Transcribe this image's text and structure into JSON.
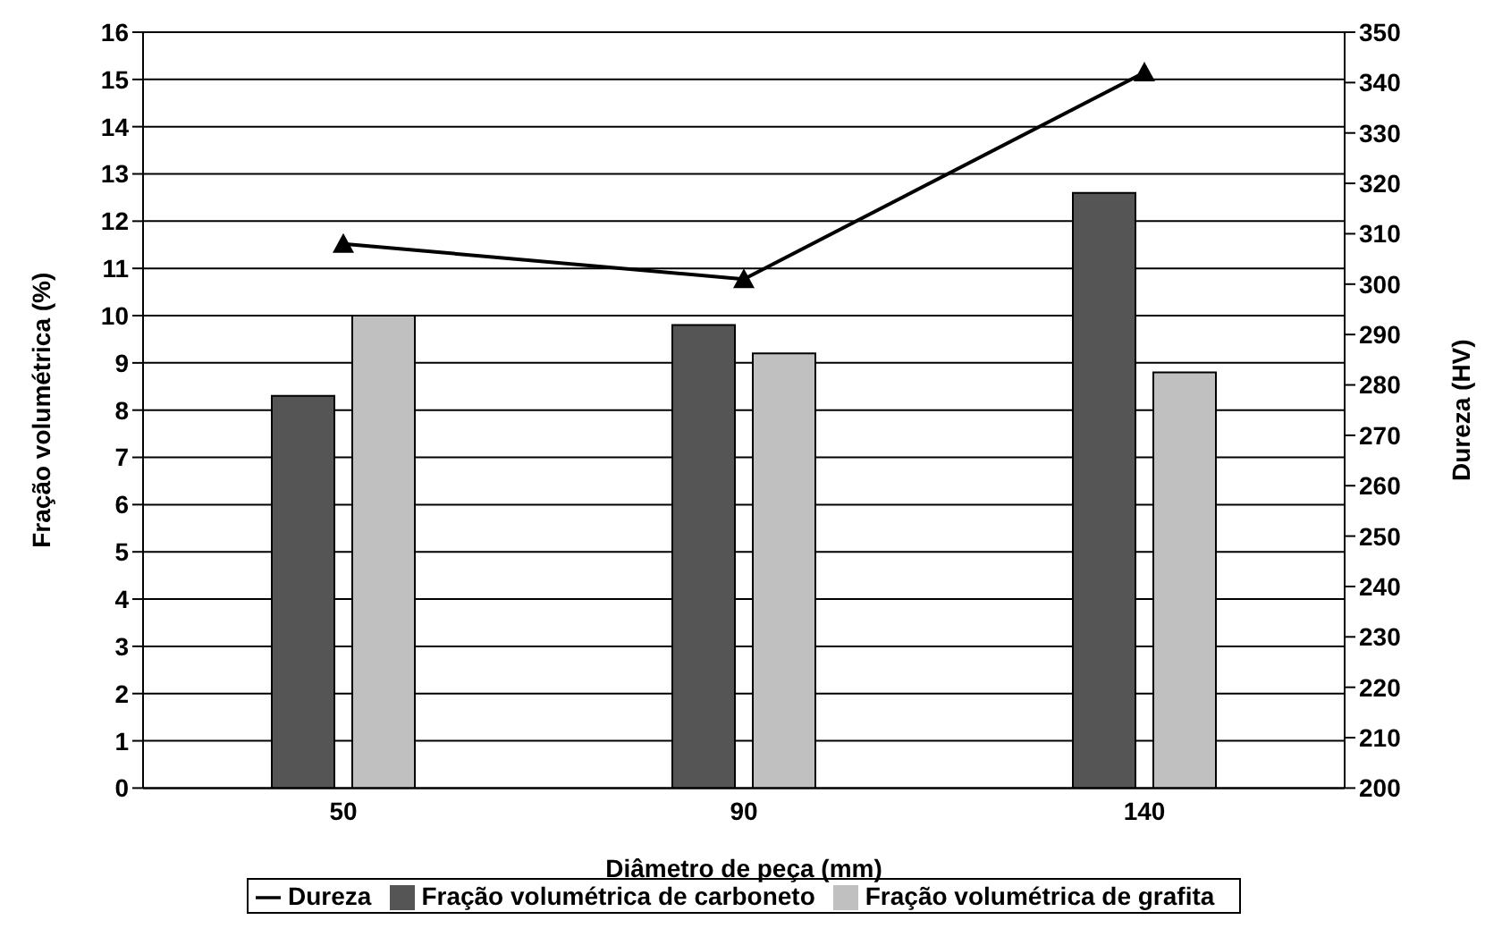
{
  "chart_data": {
    "type": "bar",
    "xlabel": "Diâmetro de peça (mm)",
    "ylabel": "Fração volumétrica (%)",
    "y2label": "Dureza (HV)",
    "categories": [
      "50",
      "90",
      "140"
    ],
    "series": [
      {
        "name": "Fração volumétrica de carboneto",
        "color": "#555555",
        "values": [
          8.3,
          9.8,
          12.6
        ]
      },
      {
        "name": "Fração volumétrica de grafita",
        "color": "#c0c0c0",
        "values": [
          10.0,
          9.2,
          8.8
        ]
      },
      {
        "name": "Dureza",
        "type": "line",
        "axis": "y2",
        "color": "#000000",
        "values": [
          308,
          301,
          342
        ]
      }
    ],
    "ylim": [
      0,
      16
    ],
    "yticks": [
      0,
      1,
      2,
      3,
      4,
      5,
      6,
      7,
      8,
      9,
      10,
      11,
      12,
      13,
      14,
      15,
      16
    ],
    "y2lim": [
      200,
      350
    ],
    "y2ticks": [
      200,
      210,
      220,
      230,
      240,
      250,
      260,
      270,
      280,
      290,
      300,
      310,
      320,
      330,
      340,
      350
    ],
    "grid": "y",
    "legend": "bottom",
    "marker": "triangle"
  }
}
